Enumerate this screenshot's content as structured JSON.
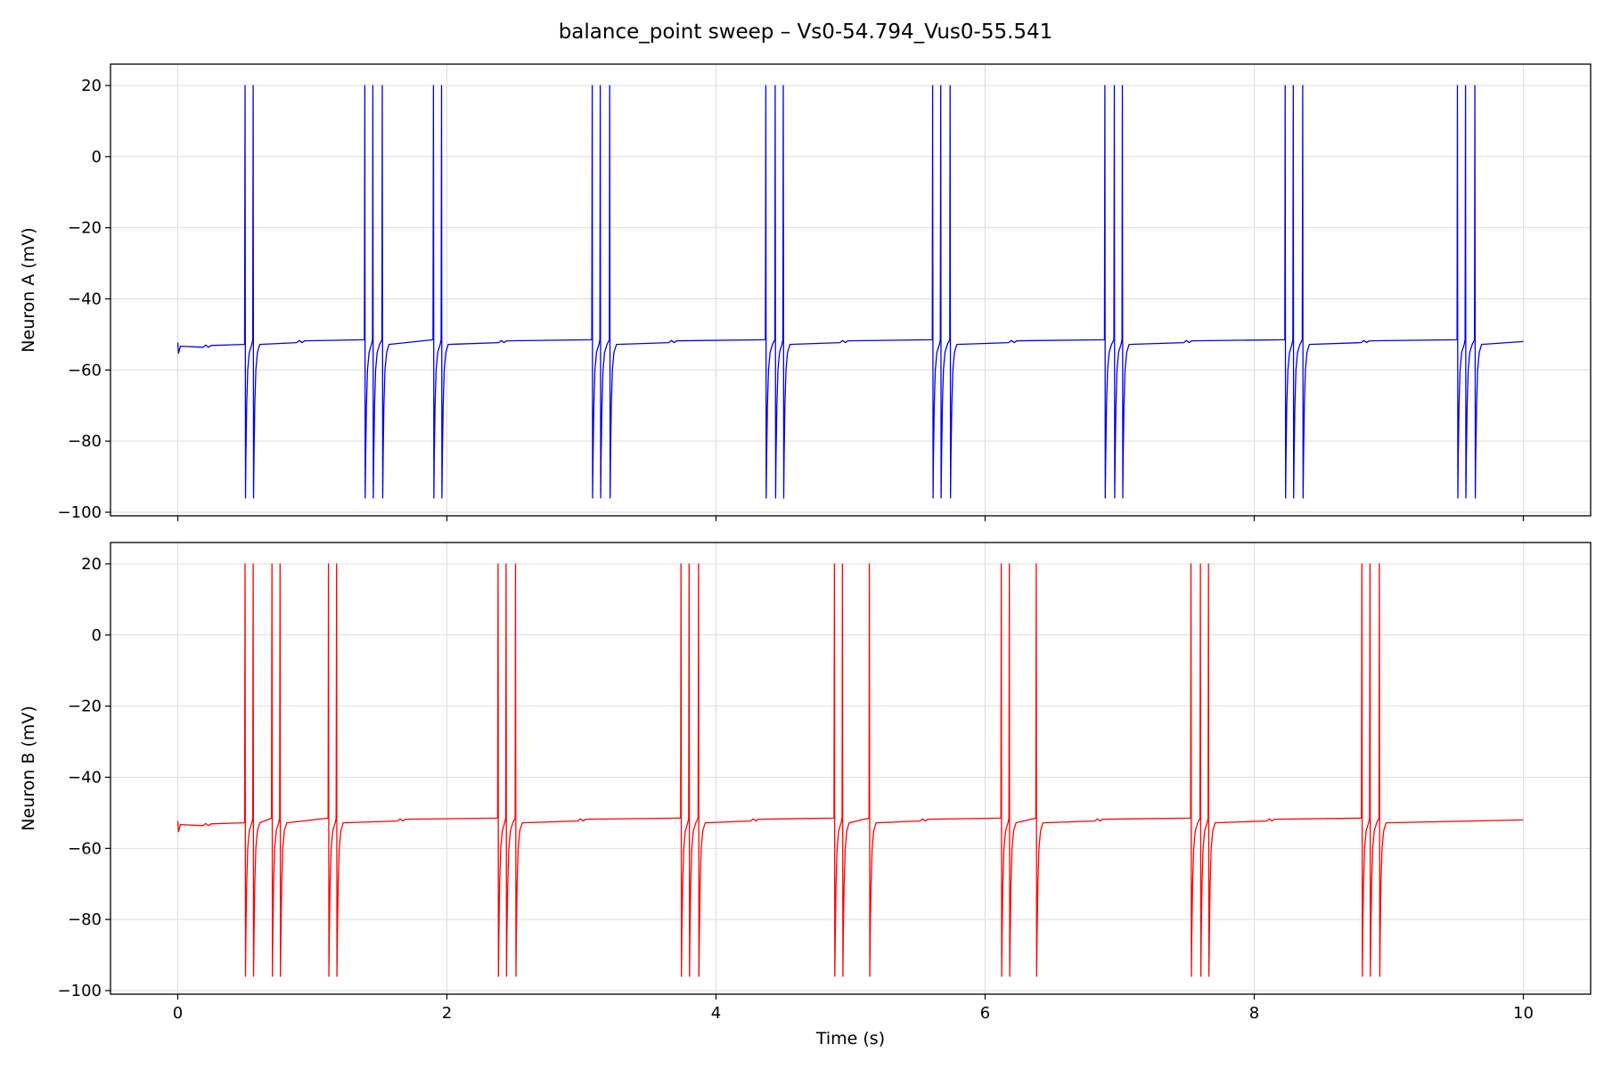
{
  "title": "balance_point sweep – Vs0-54.794_Vus0-55.541",
  "colors": {
    "neuron_a": "#0000ee",
    "neuron_b": "#ff0000",
    "grid": "#dddddd",
    "axis": "#000000"
  },
  "chart_data": [
    {
      "type": "line",
      "series": [
        {
          "color": "#0000ee",
          "resting_mv": -52,
          "initial_mv": -53.3,
          "spike_peak_mv": 20,
          "spike_trough_mv": -96,
          "spike_times_s": [
            0.5,
            0.56,
            1.39,
            1.45,
            1.52,
            1.9,
            1.96,
            3.08,
            3.14,
            3.21,
            4.37,
            4.44,
            4.5,
            5.61,
            5.67,
            5.74,
            6.89,
            6.96,
            7.02,
            8.23,
            8.29,
            8.36,
            9.51,
            9.57,
            9.64
          ]
        }
      ],
      "xlabel": "",
      "ylabel": "Neuron A (mV)",
      "xlim": [
        -0.5,
        10.5
      ],
      "ylim": [
        -101,
        26
      ],
      "xticks": [
        0,
        2,
        4,
        6,
        8,
        10
      ],
      "xtick_labels": [],
      "yticks": [
        20,
        0,
        -20,
        -40,
        -60,
        -80,
        -100
      ],
      "ytick_labels": [
        "20",
        "0",
        "−20",
        "−40",
        "−60",
        "−80",
        "−100"
      ],
      "grid": true
    },
    {
      "type": "line",
      "series": [
        {
          "color": "#ff0000",
          "resting_mv": -52,
          "initial_mv": -53.3,
          "spike_peak_mv": 20,
          "spike_trough_mv": -96,
          "spike_times_s": [
            0.5,
            0.56,
            0.7,
            0.76,
            1.12,
            1.18,
            2.38,
            2.44,
            2.51,
            3.74,
            3.8,
            3.87,
            4.88,
            4.94,
            5.14,
            6.12,
            6.18,
            6.38,
            7.53,
            7.6,
            7.66,
            8.8,
            8.86,
            8.93
          ]
        }
      ],
      "xlabel": "Time (s)",
      "ylabel": "Neuron B (mV)",
      "xlim": [
        -0.5,
        10.5
      ],
      "ylim": [
        -101,
        26
      ],
      "xticks": [
        0,
        2,
        4,
        6,
        8,
        10
      ],
      "xtick_labels": [
        "0",
        "2",
        "4",
        "6",
        "8",
        "10"
      ],
      "yticks": [
        20,
        0,
        -20,
        -40,
        -60,
        -80,
        -100
      ],
      "ytick_labels": [
        "20",
        "0",
        "−20",
        "−40",
        "−60",
        "−80",
        "−100"
      ],
      "grid": true
    }
  ]
}
